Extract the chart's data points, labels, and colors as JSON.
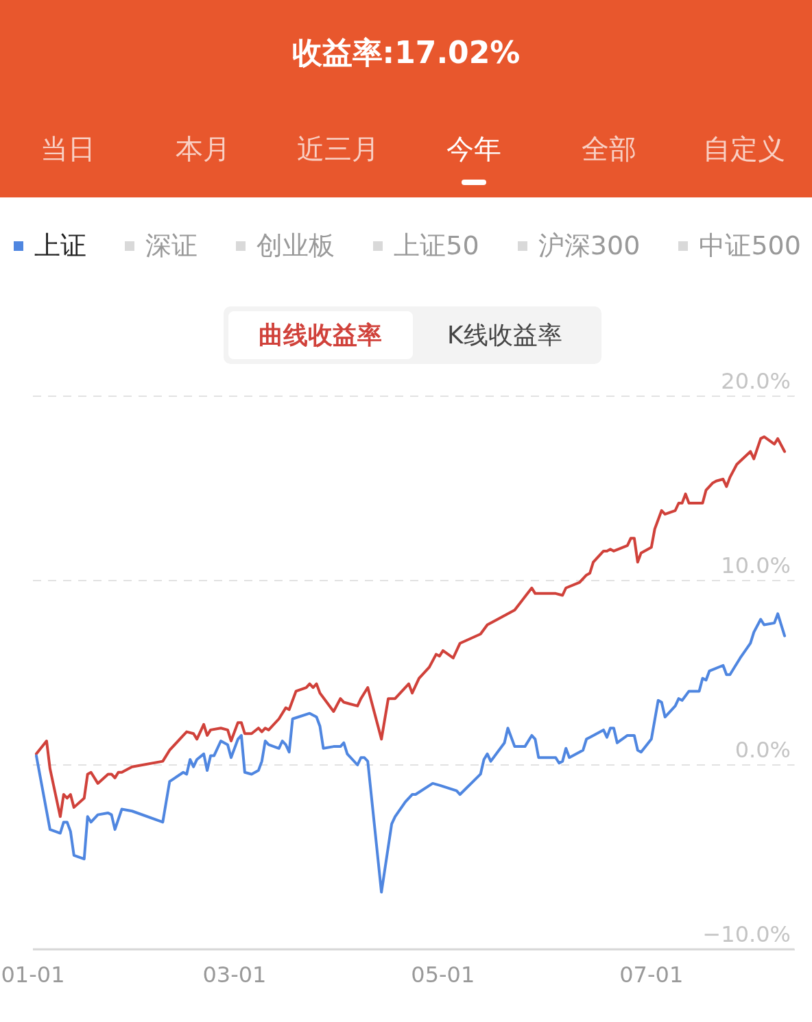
{
  "chart_data": {
    "type": "line",
    "title": "收益率:17.02%",
    "annotations": [
      "当日",
      "本月",
      "近三月",
      "今年",
      "全部",
      "自定义",
      "深证",
      "创业板",
      "上证50",
      "沪深300",
      "中证500",
      "曲线收益率",
      "K线收益率"
    ],
    "series": [
      {
        "color": "#d0413a",
        "x": [
          "--01-02",
          "--01-05",
          "--01-06",
          "--01-09",
          "--01-10",
          "--01-11",
          "--01-12",
          "--01-13",
          "--01-16",
          "--01-17",
          "--01-18",
          "--01-20",
          "--01-23",
          "--01-24",
          "--01-25",
          "--01-26",
          "--01-27",
          "--01-30",
          "--02-08",
          "--02-10",
          "--02-14",
          "--02-15",
          "--02-17",
          "--02-18",
          "--02-20",
          "--02-21",
          "--02-22",
          "--02-25",
          "--02-27",
          "--02-28",
          "--03-02",
          "--03-03",
          "--03-04",
          "--03-06",
          "--03-08",
          "--03-09",
          "--03-10",
          "--03-11",
          "--03-14",
          "--03-16",
          "--03-17",
          "--03-19",
          "--03-22",
          "--03-23",
          "--03-24",
          "--03-25",
          "--03-26",
          "--03-30",
          "--04-01",
          "--04-02",
          "--04-06",
          "--04-07",
          "--04-09",
          "--04-13",
          "--04-15",
          "--04-17",
          "--04-21",
          "--04-22",
          "--04-24",
          "--04-27",
          "--04-29",
          "--04-30",
          "--05-01",
          "--05-04",
          "--05-06",
          "--05-12",
          "--05-14",
          "--05-17",
          "--05-22",
          "--05-27",
          "--05-28",
          "--05-30",
          "--06-03",
          "--06-05",
          "--06-06",
          "--06-10",
          "--06-12",
          "--06-13",
          "--06-14",
          "--06-17",
          "--06-18",
          "--06-19",
          "--06-20",
          "--06-24",
          "--06-25",
          "--06-26",
          "--06-27",
          "--06-28",
          "--07-01",
          "--07-02",
          "--07-04",
          "--07-05",
          "--07-08",
          "--07-09",
          "--07-10",
          "--07-11",
          "--07-12",
          "--07-16",
          "--07-17",
          "--07-19",
          "--07-20",
          "--07-22",
          "--07-23",
          "--07-24",
          "--07-26",
          "--07-30",
          "--07-31",
          "--08-02",
          "--08-03",
          "--08-06",
          "--08-07",
          "--08-09"
        ],
        "values": [
          0.6,
          1.3,
          -0.2,
          -2.8,
          -1.6,
          -1.8,
          -1.6,
          -2.3,
          -1.8,
          -0.5,
          -0.4,
          -1.0,
          -0.5,
          -0.5,
          -0.7,
          -0.4,
          -0.4,
          -0.1,
          0.2,
          0.8,
          1.6,
          1.8,
          1.7,
          1.4,
          2.2,
          1.6,
          1.9,
          2.0,
          1.9,
          1.3,
          2.3,
          2.3,
          1.7,
          1.7,
          2.0,
          1.8,
          2.0,
          1.9,
          2.5,
          3.1,
          3.0,
          4.0,
          4.2,
          4.4,
          4.2,
          4.4,
          3.9,
          2.9,
          3.6,
          3.4,
          3.2,
          3.6,
          4.2,
          1.4,
          3.6,
          3.6,
          4.4,
          3.9,
          4.7,
          5.3,
          6.0,
          5.9,
          6.2,
          5.8,
          6.6,
          7.1,
          7.6,
          7.9,
          8.4,
          9.6,
          9.3,
          9.3,
          9.3,
          9.2,
          9.6,
          9.9,
          10.3,
          10.4,
          11.0,
          11.6,
          11.6,
          11.7,
          11.6,
          11.9,
          12.3,
          12.3,
          11.0,
          11.5,
          11.8,
          12.8,
          13.8,
          13.6,
          13.8,
          14.2,
          14.2,
          14.7,
          14.2,
          14.2,
          14.9,
          15.3,
          15.4,
          15.5,
          15.1,
          15.6,
          16.3,
          17.0,
          16.6,
          17.7,
          17.8,
          17.4,
          17.7,
          17.0
        ]
      },
      {
        "name": "上证",
        "color": "#4f86e0",
        "x": [
          "--01-02",
          "--01-06",
          "--01-09",
          "--01-10",
          "--01-11",
          "--01-12",
          "--01-13",
          "--01-16",
          "--01-17",
          "--01-18",
          "--01-20",
          "--01-23",
          "--01-24",
          "--01-25",
          "--01-27",
          "--01-30",
          "--02-08",
          "--02-10",
          "--02-14",
          "--02-15",
          "--02-16",
          "--02-17",
          "--02-18",
          "--02-20",
          "--02-21",
          "--02-22",
          "--02-23",
          "--02-25",
          "--02-27",
          "--02-28",
          "--03-02",
          "--03-03",
          "--03-04",
          "--03-06",
          "--03-08",
          "--03-09",
          "--03-10",
          "--03-11",
          "--03-14",
          "--03-15",
          "--03-16",
          "--03-17",
          "--03-18",
          "--03-23",
          "--03-25",
          "--03-26",
          "--03-27",
          "--03-30",
          "--04-01",
          "--04-02",
          "--04-03",
          "--04-06",
          "--04-07",
          "--04-08",
          "--04-09",
          "--04-13",
          "--04-16",
          "--04-17",
          "--04-20",
          "--04-22",
          "--04-23",
          "--04-28",
          "--04-30",
          "--05-05",
          "--05-06",
          "--05-12",
          "--05-13",
          "--05-14",
          "--05-15",
          "--05-19",
          "--05-20",
          "--05-22",
          "--05-25",
          "--05-27",
          "--05-28",
          "--05-29",
          "--06-03",
          "--06-04",
          "--06-05",
          "--06-06",
          "--06-07",
          "--06-11",
          "--06-12",
          "--06-13",
          "--06-17",
          "--06-18",
          "--06-19",
          "--06-20",
          "--06-21",
          "--06-24",
          "--06-26",
          "--06-27",
          "--06-28",
          "--07-01",
          "--07-03",
          "--07-04",
          "--07-05",
          "--07-08",
          "--07-09",
          "--07-10",
          "--07-12",
          "--07-15",
          "--07-16",
          "--07-17",
          "--07-18",
          "--07-22",
          "--07-23",
          "--07-24",
          "--07-27",
          "--07-30",
          "--07-31",
          "--08-02",
          "--08-03",
          "--08-06",
          "--08-07",
          "--08-09"
        ],
        "values": [
          0.5,
          -3.5,
          -3.7,
          -3.1,
          -3.1,
          -3.6,
          -4.9,
          -5.1,
          -2.8,
          -3.1,
          -2.7,
          -2.6,
          -2.7,
          -3.5,
          -2.4,
          -2.5,
          -3.1,
          -0.9,
          -0.4,
          -0.5,
          0.3,
          -0.1,
          0.3,
          0.6,
          -0.3,
          0.5,
          0.5,
          1.3,
          1.1,
          0.4,
          1.4,
          1.6,
          -0.4,
          -0.5,
          -0.3,
          0.2,
          1.3,
          1.1,
          0.9,
          1.3,
          1.1,
          0.7,
          2.5,
          2.8,
          2.6,
          2.1,
          0.9,
          1.0,
          1.0,
          1.2,
          0.6,
          0.0,
          0.4,
          0.4,
          0.2,
          -6.9,
          -3.2,
          -2.8,
          -2.0,
          -1.6,
          -1.6,
          -1.0,
          -1.1,
          -1.4,
          -1.6,
          -0.5,
          0.3,
          0.6,
          0.2,
          1.2,
          2.0,
          1.0,
          1.0,
          1.6,
          1.4,
          0.4,
          0.4,
          0.1,
          0.2,
          0.9,
          0.4,
          0.8,
          1.4,
          1.5,
          1.9,
          1.5,
          2.0,
          2.0,
          1.2,
          1.6,
          1.6,
          0.8,
          0.7,
          1.4,
          3.5,
          3.4,
          2.6,
          3.2,
          3.6,
          3.5,
          4.0,
          4.0,
          4.7,
          4.6,
          5.1,
          5.4,
          4.9,
          4.9,
          5.8,
          6.6,
          7.2,
          7.9,
          7.6,
          7.7,
          8.2,
          7.0
        ]
      }
    ],
    "xlim": [
      "--01-01",
      "--08-12"
    ],
    "xticks": [
      {
        "value": "--01-01",
        "label": "01-01"
      },
      {
        "value": "--03-01",
        "label": "03-01"
      },
      {
        "value": "--05-01",
        "label": "05-01"
      },
      {
        "value": "--07-01",
        "label": "07-01"
      }
    ],
    "ylim": [
      -10,
      20
    ],
    "yticks": [
      {
        "value": -10,
        "label": "−10.0%"
      },
      {
        "value": 0,
        "label": "0.0%"
      },
      {
        "value": 10,
        "label": "10.0%"
      },
      {
        "value": 20,
        "label": "20.0%"
      }
    ],
    "grid": "y",
    "legend": "top",
    "marker": "none",
    "line_style": "solid"
  }
}
